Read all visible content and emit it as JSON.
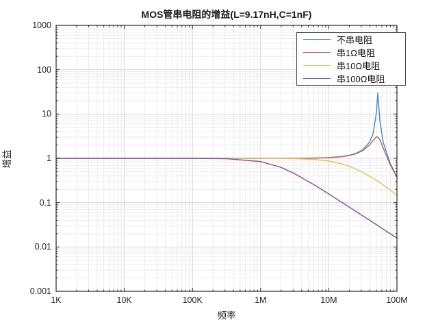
{
  "title": "MOS管串电阻的增益(L=9.17nH,C=1nF)",
  "chart_data": {
    "type": "line",
    "title": "MOS管串电阻的增益(L=9.17nH,C=1nF)",
    "xlabel": "频率",
    "ylabel": "增益",
    "x_scale": "log",
    "y_scale": "log",
    "xlim_log10": [
      3,
      8
    ],
    "ylim_log10": [
      -3,
      3
    ],
    "grid": "major+minor",
    "legend_position": "top-right",
    "x_ticks": [
      {
        "log10": 3,
        "label": "1K"
      },
      {
        "log10": 4,
        "label": "10K"
      },
      {
        "log10": 5,
        "label": "100K"
      },
      {
        "log10": 6,
        "label": "1M"
      },
      {
        "log10": 7,
        "label": "10M"
      },
      {
        "log10": 8,
        "label": "100M"
      }
    ],
    "y_ticks": [
      {
        "log10": 3,
        "label": "1000"
      },
      {
        "log10": 2,
        "label": "100"
      },
      {
        "log10": 1,
        "label": "10"
      },
      {
        "log10": 0,
        "label": "1"
      },
      {
        "log10": -1,
        "label": "0.1"
      },
      {
        "log10": -2,
        "label": "0.01"
      },
      {
        "log10": -3,
        "label": "0.001"
      }
    ],
    "x_log10": [
      3,
      3.5,
      4,
      4.5,
      5,
      5.5,
      6,
      6.3,
      6.5,
      6.8,
      7,
      7.2,
      7.3,
      7.4,
      7.5,
      7.6,
      7.65,
      7.7,
      7.72,
      7.75,
      7.8,
      7.9,
      8
    ],
    "series": [
      {
        "name": "不串电阻",
        "color": "#4a8fc6",
        "values": [
          1,
          1,
          1,
          1,
          1,
          1,
          1.0004,
          1.0014,
          1.0036,
          1.0147,
          1.0376,
          1.1,
          1.168,
          1.296,
          1.567,
          2.35,
          3.6,
          11,
          30,
          6.9,
          2.27,
          0.78,
          0.382
        ]
      },
      {
        "name": "串1Ω电阻",
        "color": "#c5674d",
        "values": [
          1,
          1,
          1,
          1,
          1,
          1,
          1.0004,
          1.0014,
          1.0035,
          1.0136,
          1.0354,
          1.094,
          1.156,
          1.27,
          1.496,
          2.02,
          2.53,
          3.05,
          3.03,
          2.62,
          1.69,
          0.726,
          0.371
        ]
      },
      {
        "name": "串10Ω电阻",
        "color": "#e7c262",
        "values": [
          1,
          1,
          1,
          1,
          1,
          0.9996,
          0.9984,
          0.9935,
          0.9842,
          0.9414,
          0.869,
          0.742,
          0.659,
          0.569,
          0.479,
          0.394,
          0.355,
          0.317,
          0.303,
          0.283,
          0.251,
          0.194,
          0.147
        ]
      },
      {
        "name": "串100Ω电阻",
        "color": "#80589c",
        "values": [
          1,
          1,
          1,
          0.9995,
          0.998,
          0.981,
          0.847,
          0.624,
          0.45,
          0.245,
          0.157,
          0.1,
          0.0796,
          0.0633,
          0.0503,
          0.04,
          0.0356,
          0.0318,
          0.0303,
          0.0283,
          0.0252,
          0.02,
          0.0159
        ]
      }
    ]
  },
  "colors": {
    "axis": "#262626",
    "grid_major": "#d9d9d9",
    "grid_minor": "#ececec"
  }
}
